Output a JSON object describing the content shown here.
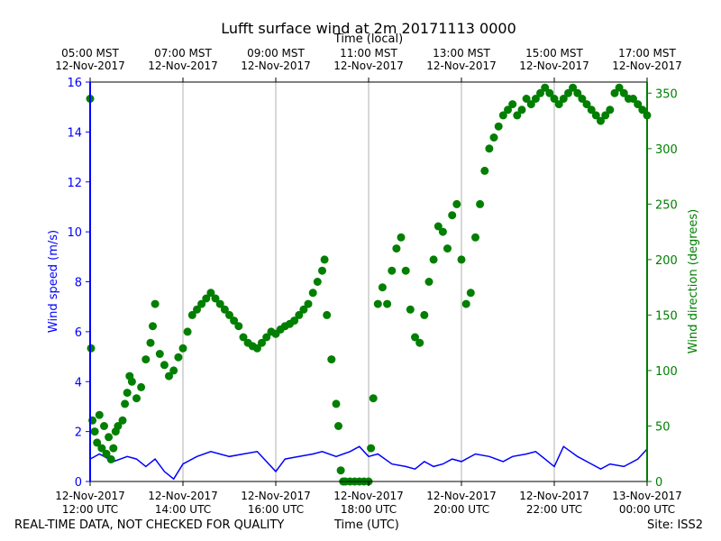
{
  "chart_data": {
    "type": "line+scatter",
    "title": "Lufft surface wind at 2m 20171113 0000",
    "top_axis_label": "Time (local)",
    "bottom_axis_label": "Time (UTC)",
    "left_axis_label": "Wind speed (m/s)",
    "right_axis_label": "Wind direction (degrees)",
    "x_range_utc_hours": [
      12,
      24
    ],
    "left_ylim": [
      0,
      16
    ],
    "right_ylim": [
      0,
      360
    ],
    "left_ticks": [
      0,
      2,
      4,
      6,
      8,
      10,
      12,
      14,
      16
    ],
    "right_ticks": [
      0,
      50,
      100,
      150,
      200,
      250,
      300,
      350
    ],
    "grid": "vertical lines at 2-hour ticks",
    "bottom_ticks": [
      {
        "hour": 12,
        "date": "12-Nov-2017",
        "time": "12:00 UTC"
      },
      {
        "hour": 14,
        "date": "12-Nov-2017",
        "time": "14:00 UTC"
      },
      {
        "hour": 16,
        "date": "12-Nov-2017",
        "time": "16:00 UTC"
      },
      {
        "hour": 18,
        "date": "12-Nov-2017",
        "time": "18:00 UTC"
      },
      {
        "hour": 20,
        "date": "12-Nov-2017",
        "time": "20:00 UTC"
      },
      {
        "hour": 22,
        "date": "12-Nov-2017",
        "time": "22:00 UTC"
      },
      {
        "hour": 24,
        "date": "13-Nov-2017",
        "time": "00:00 UTC"
      }
    ],
    "top_ticks": [
      {
        "hour": 12,
        "time": "05:00 MST",
        "date": "12-Nov-2017"
      },
      {
        "hour": 14,
        "time": "07:00 MST",
        "date": "12-Nov-2017"
      },
      {
        "hour": 16,
        "time": "09:00 MST",
        "date": "12-Nov-2017"
      },
      {
        "hour": 18,
        "time": "11:00 MST",
        "date": "12-Nov-2017"
      },
      {
        "hour": 20,
        "time": "13:00 MST",
        "date": "12-Nov-2017"
      },
      {
        "hour": 22,
        "time": "15:00 MST",
        "date": "12-Nov-2017"
      },
      {
        "hour": 24,
        "time": "17:00 MST",
        "date": "12-Nov-2017"
      }
    ],
    "series": [
      {
        "name": "Wind speed (m/s)",
        "kind": "line",
        "color": "#0000ff",
        "axis": "left",
        "points": [
          [
            12.0,
            0.9
          ],
          [
            12.2,
            1.1
          ],
          [
            12.5,
            0.8
          ],
          [
            12.8,
            1.0
          ],
          [
            13.0,
            0.9
          ],
          [
            13.2,
            0.6
          ],
          [
            13.4,
            0.9
          ],
          [
            13.6,
            0.4
          ],
          [
            13.8,
            0.1
          ],
          [
            14.0,
            0.7
          ],
          [
            14.3,
            1.0
          ],
          [
            14.6,
            1.2
          ],
          [
            15.0,
            1.0
          ],
          [
            15.3,
            1.1
          ],
          [
            15.6,
            1.2
          ],
          [
            15.8,
            0.8
          ],
          [
            16.0,
            0.4
          ],
          [
            16.2,
            0.9
          ],
          [
            16.5,
            1.0
          ],
          [
            16.8,
            1.1
          ],
          [
            17.0,
            1.2
          ],
          [
            17.3,
            1.0
          ],
          [
            17.6,
            1.2
          ],
          [
            17.8,
            1.4
          ],
          [
            18.0,
            1.0
          ],
          [
            18.2,
            1.1
          ],
          [
            18.5,
            0.7
          ],
          [
            18.8,
            0.6
          ],
          [
            19.0,
            0.5
          ],
          [
            19.2,
            0.8
          ],
          [
            19.4,
            0.6
          ],
          [
            19.6,
            0.7
          ],
          [
            19.8,
            0.9
          ],
          [
            20.0,
            0.8
          ],
          [
            20.3,
            1.1
          ],
          [
            20.6,
            1.0
          ],
          [
            20.9,
            0.8
          ],
          [
            21.1,
            1.0
          ],
          [
            21.4,
            1.1
          ],
          [
            21.6,
            1.2
          ],
          [
            21.8,
            0.9
          ],
          [
            22.0,
            0.6
          ],
          [
            22.2,
            1.4
          ],
          [
            22.5,
            1.0
          ],
          [
            22.8,
            0.7
          ],
          [
            23.0,
            0.5
          ],
          [
            23.2,
            0.7
          ],
          [
            23.5,
            0.6
          ],
          [
            23.8,
            0.9
          ],
          [
            24.0,
            1.3
          ]
        ]
      },
      {
        "name": "Wind direction (degrees)",
        "kind": "scatter",
        "color": "#007f00",
        "axis": "right",
        "points": [
          [
            12.0,
            345
          ],
          [
            12.02,
            120
          ],
          [
            12.05,
            55
          ],
          [
            12.1,
            45
          ],
          [
            12.15,
            35
          ],
          [
            12.2,
            60
          ],
          [
            12.25,
            30
          ],
          [
            12.3,
            50
          ],
          [
            12.35,
            25
          ],
          [
            12.4,
            40
          ],
          [
            12.45,
            20
          ],
          [
            12.5,
            30
          ],
          [
            12.55,
            45
          ],
          [
            12.6,
            50
          ],
          [
            12.7,
            55
          ],
          [
            12.75,
            70
          ],
          [
            12.8,
            80
          ],
          [
            12.85,
            95
          ],
          [
            12.9,
            90
          ],
          [
            13.0,
            75
          ],
          [
            13.1,
            85
          ],
          [
            13.2,
            110
          ],
          [
            13.3,
            125
          ],
          [
            13.35,
            140
          ],
          [
            13.4,
            160
          ],
          [
            13.5,
            115
          ],
          [
            13.6,
            105
          ],
          [
            13.7,
            95
          ],
          [
            13.8,
            100
          ],
          [
            13.9,
            112
          ],
          [
            14.0,
            120
          ],
          [
            14.1,
            135
          ],
          [
            14.2,
            150
          ],
          [
            14.3,
            155
          ],
          [
            14.4,
            160
          ],
          [
            14.5,
            165
          ],
          [
            14.6,
            170
          ],
          [
            14.7,
            165
          ],
          [
            14.8,
            160
          ],
          [
            14.9,
            155
          ],
          [
            15.0,
            150
          ],
          [
            15.1,
            145
          ],
          [
            15.2,
            140
          ],
          [
            15.3,
            130
          ],
          [
            15.4,
            125
          ],
          [
            15.5,
            122
          ],
          [
            15.6,
            120
          ],
          [
            15.7,
            125
          ],
          [
            15.8,
            130
          ],
          [
            15.9,
            135
          ],
          [
            16.0,
            133
          ],
          [
            16.1,
            137
          ],
          [
            16.2,
            140
          ],
          [
            16.3,
            142
          ],
          [
            16.4,
            145
          ],
          [
            16.5,
            150
          ],
          [
            16.6,
            155
          ],
          [
            16.7,
            160
          ],
          [
            16.8,
            170
          ],
          [
            16.9,
            180
          ],
          [
            17.0,
            190
          ],
          [
            17.05,
            200
          ],
          [
            17.1,
            150
          ],
          [
            17.2,
            110
          ],
          [
            17.3,
            70
          ],
          [
            17.35,
            50
          ],
          [
            17.4,
            10
          ],
          [
            17.45,
            0
          ],
          [
            17.5,
            0
          ],
          [
            17.6,
            0
          ],
          [
            17.7,
            0
          ],
          [
            17.8,
            0
          ],
          [
            17.9,
            0
          ],
          [
            18.0,
            0
          ],
          [
            18.05,
            30
          ],
          [
            18.1,
            75
          ],
          [
            18.2,
            160
          ],
          [
            18.3,
            175
          ],
          [
            18.4,
            160
          ],
          [
            18.5,
            190
          ],
          [
            18.6,
            210
          ],
          [
            18.7,
            220
          ],
          [
            18.8,
            190
          ],
          [
            18.9,
            155
          ],
          [
            19.0,
            130
          ],
          [
            19.1,
            125
          ],
          [
            19.2,
            150
          ],
          [
            19.3,
            180
          ],
          [
            19.4,
            200
          ],
          [
            19.5,
            230
          ],
          [
            19.6,
            225
          ],
          [
            19.7,
            210
          ],
          [
            19.8,
            240
          ],
          [
            19.9,
            250
          ],
          [
            20.0,
            200
          ],
          [
            20.1,
            160
          ],
          [
            20.2,
            170
          ],
          [
            20.3,
            220
          ],
          [
            20.4,
            250
          ],
          [
            20.5,
            280
          ],
          [
            20.6,
            300
          ],
          [
            20.7,
            310
          ],
          [
            20.8,
            320
          ],
          [
            20.9,
            330
          ],
          [
            21.0,
            335
          ],
          [
            21.1,
            340
          ],
          [
            21.2,
            330
          ],
          [
            21.3,
            335
          ],
          [
            21.4,
            345
          ],
          [
            21.5,
            340
          ],
          [
            21.6,
            345
          ],
          [
            21.7,
            350
          ],
          [
            21.8,
            355
          ],
          [
            21.9,
            350
          ],
          [
            22.0,
            345
          ],
          [
            22.1,
            340
          ],
          [
            22.2,
            345
          ],
          [
            22.3,
            350
          ],
          [
            22.4,
            355
          ],
          [
            22.5,
            350
          ],
          [
            22.6,
            345
          ],
          [
            22.7,
            340
          ],
          [
            22.8,
            335
          ],
          [
            22.9,
            330
          ],
          [
            23.0,
            325
          ],
          [
            23.1,
            330
          ],
          [
            23.2,
            335
          ],
          [
            23.3,
            350
          ],
          [
            23.4,
            355
          ],
          [
            23.5,
            350
          ],
          [
            23.6,
            345
          ],
          [
            23.7,
            345
          ],
          [
            23.8,
            340
          ],
          [
            23.9,
            335
          ],
          [
            24.0,
            330
          ]
        ]
      }
    ]
  },
  "footer": {
    "disclaimer": "REAL-TIME DATA, NOT CHECKED FOR QUALITY",
    "axis_title": "Time (UTC)",
    "site": "Site: ISS2"
  }
}
